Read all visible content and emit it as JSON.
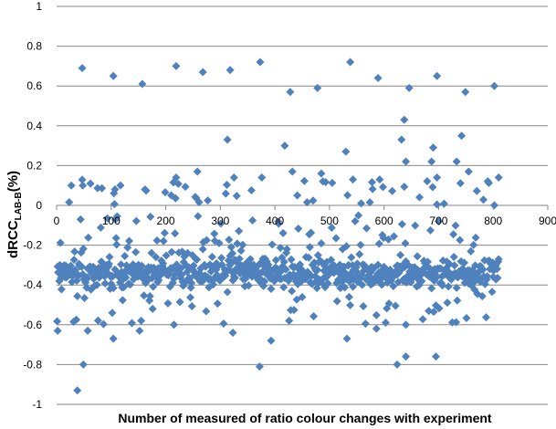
{
  "chart_data": {
    "type": "scatter",
    "title": "",
    "xlabel": "Number of measured of ratio colour changes with experiment",
    "ylabel": {
      "main": "dRCC",
      "subscript": "LAB-B",
      "suffix": "(%)"
    },
    "xlim": [
      0,
      900
    ],
    "ylim": [
      -1,
      1
    ],
    "xticks": [
      "0",
      "100",
      "200",
      "300",
      "400",
      "500",
      "600",
      "700",
      "800",
      "900"
    ],
    "yticks": [
      "1",
      "0.8",
      "0.6",
      "0.4",
      "0.2",
      "0",
      "-0.2",
      "-0.4",
      "-0.6",
      "-0.8",
      "-1"
    ],
    "grid": "horizontal",
    "legend": "none",
    "marker": "diamond",
    "color": "#4F81BD",
    "gridColor": "#868686",
    "x_count": 810,
    "outliers": [
      {
        "x": 47,
        "y": 0.69
      },
      {
        "x": 104,
        "y": 0.65
      },
      {
        "x": 157,
        "y": 0.61
      },
      {
        "x": 219,
        "y": 0.7
      },
      {
        "x": 268,
        "y": 0.67
      },
      {
        "x": 318,
        "y": 0.68
      },
      {
        "x": 373,
        "y": 0.72
      },
      {
        "x": 428,
        "y": 0.57
      },
      {
        "x": 478,
        "y": 0.59
      },
      {
        "x": 538,
        "y": 0.72
      },
      {
        "x": 589,
        "y": 0.64
      },
      {
        "x": 646,
        "y": 0.59
      },
      {
        "x": 697,
        "y": 0.65
      },
      {
        "x": 749,
        "y": 0.57
      },
      {
        "x": 802,
        "y": 0.6
      },
      {
        "x": 637,
        "y": 0.43
      },
      {
        "x": 313,
        "y": 0.33
      },
      {
        "x": 632,
        "y": 0.33
      },
      {
        "x": 418,
        "y": 0.3
      },
      {
        "x": 742,
        "y": 0.35
      },
      {
        "x": 690,
        "y": 0.29
      },
      {
        "x": 530,
        "y": 0.27
      },
      {
        "x": 640,
        "y": 0.22
      },
      {
        "x": 687,
        "y": 0.22
      },
      {
        "x": 733,
        "y": 0.22
      },
      {
        "x": 258,
        "y": 0.17
      },
      {
        "x": 432,
        "y": 0.17
      },
      {
        "x": 755,
        "y": 0.17
      },
      {
        "x": 48,
        "y": 0.1
      },
      {
        "x": 107,
        "y": 0.08
      },
      {
        "x": 162,
        "y": 0.08
      },
      {
        "x": 219,
        "y": 0.14
      },
      {
        "x": 325,
        "y": 0.14
      },
      {
        "x": 376,
        "y": 0.14
      },
      {
        "x": 485,
        "y": 0.16
      },
      {
        "x": 543,
        "y": 0.13
      },
      {
        "x": 592,
        "y": 0.13
      },
      {
        "x": 697,
        "y": 0.14
      },
      {
        "x": 810,
        "y": 0.14
      },
      {
        "x": 57,
        "y": -0.63
      },
      {
        "x": 104,
        "y": -0.67
      },
      {
        "x": 152,
        "y": -0.63
      },
      {
        "x": 215,
        "y": -0.6
      },
      {
        "x": 323,
        "y": -0.64
      },
      {
        "x": 393,
        "y": -0.68
      },
      {
        "x": 532,
        "y": -0.67
      },
      {
        "x": 586,
        "y": -0.62
      },
      {
        "x": 640,
        "y": -0.6
      },
      {
        "x": 49,
        "y": -0.8
      },
      {
        "x": 372,
        "y": -0.81
      },
      {
        "x": 624,
        "y": -0.8
      },
      {
        "x": 640,
        "y": -0.76
      },
      {
        "x": 695,
        "y": -0.76
      },
      {
        "x": 38,
        "y": -0.93
      },
      {
        "x": 2,
        "y": -0.63
      }
    ]
  }
}
